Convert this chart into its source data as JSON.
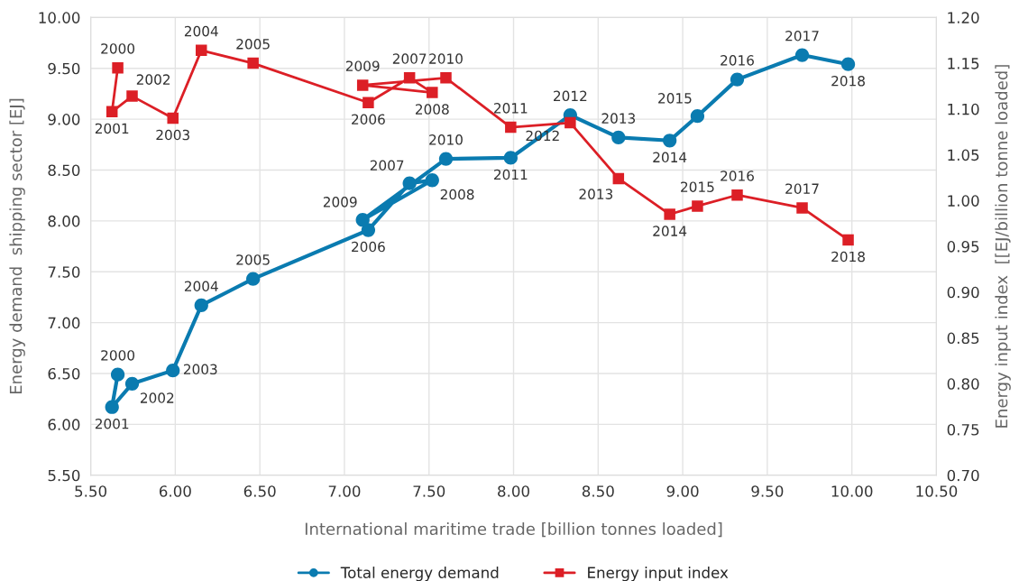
{
  "chart_data": {
    "type": "line",
    "xlabel": "International maritime trade [billion tonnes loaded]",
    "ylabel": "Energy demand  shipping sector [EJ]",
    "y2label": "Energy input index  [[EJ/billion tonne loaded]",
    "x": [
      5.66,
      5.626,
      5.745,
      5.986,
      6.154,
      6.46,
      7.141,
      7.385,
      7.519,
      7.108,
      7.6,
      7.983,
      8.335,
      8.62,
      8.923,
      9.087,
      9.322,
      9.706,
      9.978
    ],
    "series": [
      {
        "name": "Total energy demand",
        "color": "#0a7bb0",
        "marker": "circle",
        "values": [
          6.49,
          6.17,
          6.4,
          6.53,
          7.17,
          7.43,
          7.91,
          8.37,
          8.4,
          8.01,
          8.61,
          8.62,
          9.04,
          8.82,
          8.79,
          9.03,
          9.39,
          9.63,
          9.54
        ]
      },
      {
        "name": "Energy input index",
        "color": "#dc1f26",
        "marker": "square",
        "axis": "y2",
        "values": [
          1.145,
          1.097,
          1.114,
          1.09,
          1.164,
          1.15,
          1.107,
          1.134,
          1.118,
          1.126,
          1.134,
          1.08,
          1.085,
          1.024,
          0.985,
          0.994,
          1.006,
          0.992,
          0.957
        ]
      }
    ],
    "annotations": [
      {
        "text": "2000",
        "x": 5.66,
        "y": 6.49
      },
      {
        "text": "2001",
        "x": 5.626,
        "y": 6.17
      },
      {
        "text": "2002",
        "x": 5.745,
        "y": 6.4
      },
      {
        "text": "2003",
        "x": 5.986,
        "y": 6.53
      },
      {
        "text": "2004",
        "x": 6.154,
        "y": 7.17
      },
      {
        "text": "2005",
        "x": 6.46,
        "y": 7.43
      },
      {
        "text": "2006",
        "x": 7.141,
        "y": 7.91
      },
      {
        "text": "2007",
        "x": 7.385,
        "y": 8.37
      },
      {
        "text": "2008",
        "x": 7.519,
        "y": 8.4
      },
      {
        "text": "2009",
        "x": 7.108,
        "y": 8.01
      },
      {
        "text": "2010",
        "x": 7.6,
        "y": 8.61
      },
      {
        "text": "2011",
        "x": 7.983,
        "y": 8.62
      },
      {
        "text": "2012",
        "x": 8.335,
        "y": 9.04
      },
      {
        "text": "2013",
        "x": 8.62,
        "y": 8.82
      },
      {
        "text": "2014",
        "x": 8.923,
        "y": 8.79
      },
      {
        "text": "2015",
        "x": 9.087,
        "y": 9.03
      },
      {
        "text": "2016",
        "x": 9.322,
        "y": 9.39
      },
      {
        "text": "2017",
        "x": 9.706,
        "y": 9.63
      },
      {
        "text": "2018",
        "x": 9.978,
        "y": 9.54
      },
      "2000",
      "2001",
      "2002",
      "2003",
      "2004",
      "2005",
      "2006",
      "2007",
      "2008",
      "2009",
      "2010",
      "2011",
      "2012",
      "2013",
      "2014",
      "2015",
      "2016",
      "2017",
      "2018"
    ],
    "xlim": [
      5.5,
      10.5
    ],
    "xticks": [
      {
        "value": 5.5,
        "label": "5.50"
      },
      {
        "value": 6.0,
        "label": "6.00"
      },
      {
        "value": 6.5,
        "label": "6.50"
      },
      {
        "value": 7.0,
        "label": "7.00"
      },
      {
        "value": 7.5,
        "label": "7.50"
      },
      {
        "value": 8.0,
        "label": "8.00"
      },
      {
        "value": 8.5,
        "label": "8.50"
      },
      {
        "value": 9.0,
        "label": "9.00"
      },
      {
        "value": 9.5,
        "label": "9.50"
      },
      {
        "value": 10.0,
        "label": "10.00"
      },
      {
        "value": 10.5,
        "label": "10.50"
      }
    ],
    "ylim": [
      5.5,
      10.0
    ],
    "yticks": [
      {
        "value": 5.5,
        "label": "5.50"
      },
      {
        "value": 6.0,
        "label": "6.00"
      },
      {
        "value": 6.5,
        "label": "6.50"
      },
      {
        "value": 7.0,
        "label": "7.00"
      },
      {
        "value": 7.5,
        "label": "7.50"
      },
      {
        "value": 8.0,
        "label": "8.00"
      },
      {
        "value": 8.5,
        "label": "8.50"
      },
      {
        "value": 9.0,
        "label": "9.00"
      },
      {
        "value": 9.5,
        "label": "9.50"
      },
      {
        "value": 10.0,
        "label": "10.00"
      }
    ],
    "y2lim": [
      0.7,
      1.2
    ],
    "y2ticks": [
      {
        "value": 0.7,
        "label": "0.70"
      },
      {
        "value": 0.75,
        "label": "0.75"
      },
      {
        "value": 0.8,
        "label": "0.80"
      },
      {
        "value": 0.85,
        "label": "0.85"
      },
      {
        "value": 0.9,
        "label": "0.90"
      },
      {
        "value": 0.95,
        "label": "0.95"
      },
      {
        "value": 1.0,
        "label": "1.00"
      },
      {
        "value": 1.05,
        "label": "1.05"
      },
      {
        "value": 1.1,
        "label": "1.10"
      },
      {
        "value": 1.15,
        "label": "1.15"
      },
      {
        "value": 1.2,
        "label": "1.20"
      }
    ],
    "grid": true,
    "legend": "bottom",
    "line_style": "solid"
  }
}
